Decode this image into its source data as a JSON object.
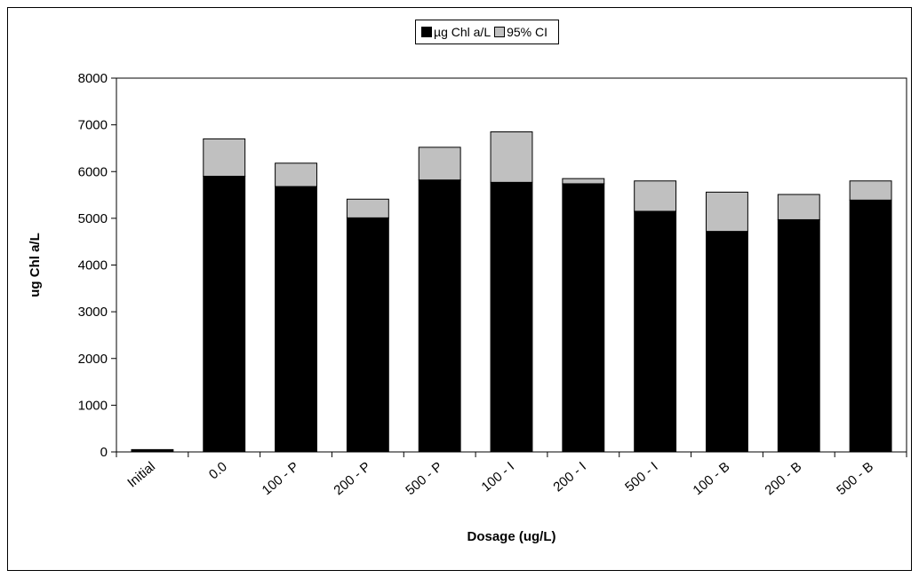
{
  "chart_data": {
    "type": "bar",
    "stacked": true,
    "categories": [
      "Initial",
      "0.0",
      "100 - P",
      "200 - P",
      "500 - P",
      "100 - I",
      "200 - I",
      "500 - I",
      "100 - B",
      "200 - B",
      "500 - B"
    ],
    "series": [
      {
        "name": "µg Chl a/L",
        "color": "#000000",
        "values": [
          50,
          5900,
          5680,
          5010,
          5820,
          5770,
          5740,
          5150,
          4720,
          4970,
          5390
        ]
      },
      {
        "name": "95% CI",
        "color": "#c0c0c0",
        "values": [
          0,
          800,
          500,
          400,
          700,
          1080,
          110,
          650,
          840,
          540,
          410
        ]
      }
    ],
    "xlabel": "Dosage (ug/L)",
    "ylabel": "ug Chl a/L",
    "ylim": [
      0,
      8000
    ],
    "yticks": [
      0,
      1000,
      2000,
      3000,
      4000,
      5000,
      6000,
      7000,
      8000
    ],
    "grid": false,
    "legend_position": "top-center"
  }
}
